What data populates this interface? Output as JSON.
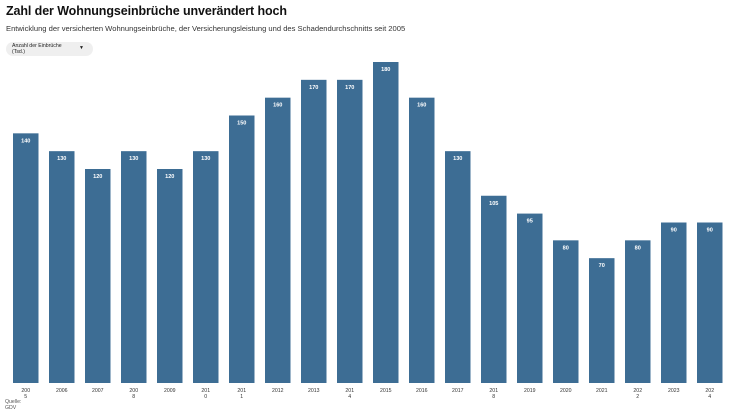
{
  "title": "Zahl der Wohnungseinbrüche unverändert hoch",
  "subtitle": "Entwicklung der versicherten Wohnungseinbrüche, der Versicherungsleistung und des Schadendurchschnitts seit 2005",
  "dropdown": {
    "label_line1": "Anzahl der Einbrüche",
    "label_line2": "(Tsd.)",
    "icon": "chevron-down-icon"
  },
  "source": {
    "line1": "Quelle:",
    "line2": "GDV"
  },
  "colors": {
    "bar": "#3d6d94",
    "bar_label": "#ffffff",
    "axis_text": "#333333"
  },
  "chart_data": {
    "type": "bar",
    "categories": [
      [
        "200",
        "5"
      ],
      [
        "2006"
      ],
      [
        "2007"
      ],
      [
        "200",
        "8"
      ],
      [
        "2009"
      ],
      [
        "201",
        "0"
      ],
      [
        "201",
        "1"
      ],
      [
        "2012"
      ],
      [
        "2013"
      ],
      [
        "201",
        "4"
      ],
      [
        "2015"
      ],
      [
        "2016"
      ],
      [
        "2017"
      ],
      [
        "201",
        "8"
      ],
      [
        "2019"
      ],
      [
        "2020"
      ],
      [
        "2021"
      ],
      [
        "202",
        "2"
      ],
      [
        "2023"
      ],
      [
        "202",
        "4"
      ]
    ],
    "values": [
      140,
      130,
      120,
      130,
      120,
      130,
      150,
      160,
      170,
      170,
      180,
      160,
      130,
      105,
      95,
      80,
      70,
      80,
      90,
      90
    ],
    "data_labels": [
      "140",
      "130",
      "120",
      "130",
      "120",
      "130",
      "150",
      "160",
      "170",
      "170",
      "180",
      "160",
      "130",
      "105",
      "95",
      "80",
      "70",
      "80",
      "90",
      "90"
    ],
    "ylim": [
      0,
      180
    ],
    "grid": false,
    "legend": "none"
  }
}
